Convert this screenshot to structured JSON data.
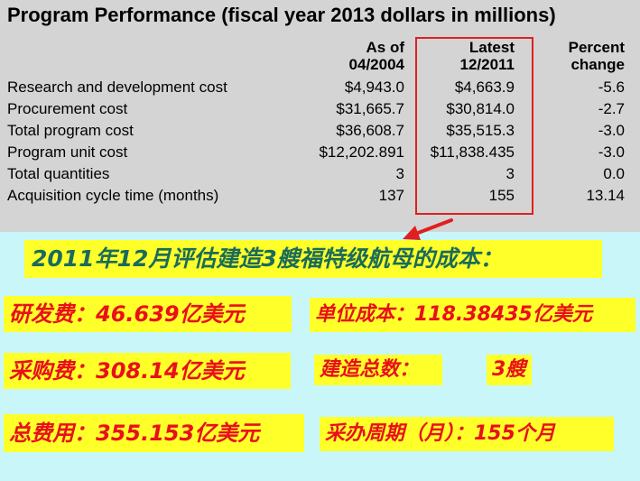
{
  "table": {
    "title": "Program Performance (fiscal year 2013 dollars in millions)",
    "columns": [
      {
        "line1": "As of",
        "line2": "04/2004"
      },
      {
        "line1": "Latest",
        "line2": "12/2011"
      },
      {
        "line1": "Percent",
        "line2": "change"
      }
    ],
    "rows": [
      {
        "label": "Research and development cost",
        "asof": "$4,943.0",
        "latest": "$4,663.9",
        "change": "-5.6"
      },
      {
        "label": "Procurement cost",
        "asof": "$31,665.7",
        "latest": "$30,814.0",
        "change": "-2.7"
      },
      {
        "label": "Total program cost",
        "asof": "$36,608.7",
        "latest": "$35,515.3",
        "change": "-3.0"
      },
      {
        "label": "Program unit cost",
        "asof": "$12,202.891",
        "latest": "$11,838.435",
        "change": "-3.0"
      },
      {
        "label": "Total quantities",
        "asof": "3",
        "latest": "3",
        "change": "0.0"
      },
      {
        "label": "Acquisition cycle time (months)",
        "asof": "137",
        "latest": "155",
        "change": "13.14"
      }
    ]
  },
  "summary": {
    "banner": "2011年12月评估建造3艘福特级航母的成本：",
    "rd": "研发费：46.639亿美元",
    "unit": "单位成本：118.38435亿美元",
    "procurement": "采购费：308.14亿美元",
    "qty_label": "建造总数：",
    "qty_value": "3艘",
    "total": "总费用：355.153亿美元",
    "cycle": "采办周期（月）：155个月"
  },
  "colors": {
    "table_bg": "#d4d4d4",
    "panel_bg": "#c9f7f9",
    "highlight": "#ffff29",
    "banner_text": "#1a6b5a",
    "red_text": "#e8101a",
    "red_box": "#e02020"
  }
}
